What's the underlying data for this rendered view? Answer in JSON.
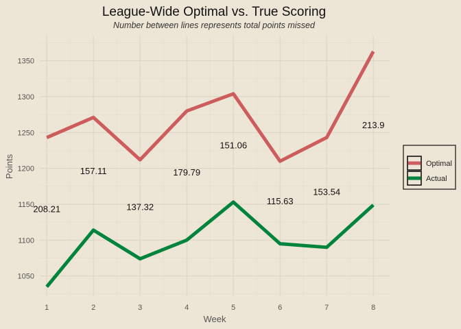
{
  "chart_data": {
    "type": "line",
    "title": "League-Wide Optimal vs. True Scoring",
    "subtitle": "Number between lines represents total points missed",
    "xlabel": "Week",
    "ylabel": "Points",
    "x": [
      1,
      2,
      3,
      4,
      5,
      6,
      7,
      8
    ],
    "xticks": [
      "1",
      "2",
      "3",
      "4",
      "5",
      "6",
      "7",
      "8"
    ],
    "yticks": [
      "1050",
      "1100",
      "1150",
      "1200",
      "1250",
      "1300",
      "1350"
    ],
    "ylim": [
      1022,
      1385
    ],
    "xlim": [
      0.85,
      8.35
    ],
    "grid": true,
    "legend_position": "right",
    "series": [
      {
        "name": "Optimal",
        "color": "#cd5c5c",
        "values": [
          1243,
          1271,
          1212,
          1280,
          1304,
          1210,
          1243,
          1363
        ]
      },
      {
        "name": "Actual",
        "color": "#00843d",
        "values": [
          1035,
          1114,
          1074,
          1100,
          1153,
          1095,
          1090,
          1149
        ]
      }
    ],
    "annotations": [
      {
        "text": "208.21",
        "x": 1,
        "y": 1139
      },
      {
        "text": "157.11",
        "x": 2,
        "y": 1192
      },
      {
        "text": "137.32",
        "x": 3,
        "y": 1142
      },
      {
        "text": "179.79",
        "x": 4,
        "y": 1190
      },
      {
        "text": "151.06",
        "x": 5,
        "y": 1228
      },
      {
        "text": "115.63",
        "x": 6,
        "y": 1150
      },
      {
        "text": "153.54",
        "x": 7,
        "y": 1163
      },
      {
        "text": "213.9",
        "x": 8,
        "y": 1256
      }
    ]
  }
}
